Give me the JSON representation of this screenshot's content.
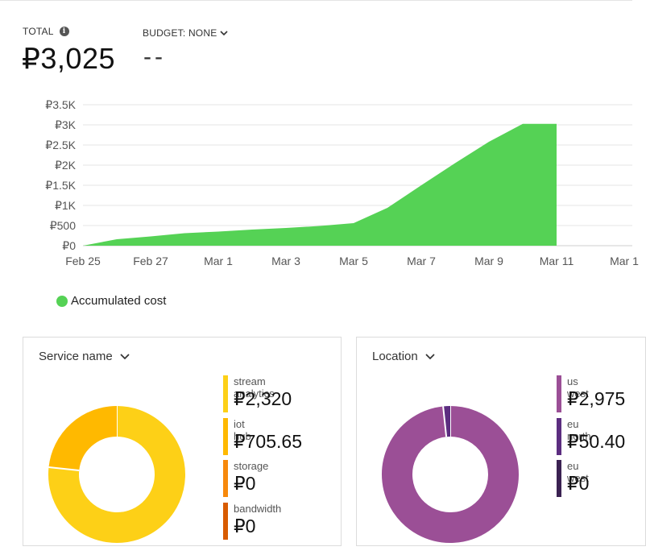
{
  "summary": {
    "total_label": "TOTAL",
    "total_value": "₽3,025",
    "budget_label": "BUDGET: NONE",
    "budget_value": "--"
  },
  "icons": {
    "info": "info-icon",
    "chevron": "chevron-down-icon"
  },
  "colors": {
    "accumulated": "#55d255",
    "stream_analytics": "#fdd017",
    "iot_hub": "#ffb900",
    "storage": "#f7890c",
    "bandwidth": "#d85b00",
    "us_west": "#9b4f96",
    "eu_north": "#5c2d80",
    "eu_west": "#3b2252"
  },
  "chart_data": {
    "type": "area",
    "x_tick_labels": [
      "Feb 25",
      "Feb 27",
      "Mar 1",
      "Mar 3",
      "Mar 5",
      "Mar 7",
      "Mar 9",
      "Mar 11",
      "Mar 1"
    ],
    "y_tick_labels": [
      "₽0",
      "₽500",
      "₽1K",
      "₽1.5K",
      "₽2K",
      "₽2.5K",
      "₽3K",
      "₽3.5K"
    ],
    "y_ticks": [
      0,
      500,
      1000,
      1500,
      2000,
      2500,
      3000,
      3500
    ],
    "ylim": [
      0,
      3500
    ],
    "x": [
      "Feb 25",
      "Feb 26",
      "Feb 27",
      "Feb 28",
      "Mar 1",
      "Mar 2",
      "Mar 3",
      "Mar 4",
      "Mar 5",
      "Mar 6",
      "Mar 7",
      "Mar 8",
      "Mar 9",
      "Mar 10",
      "Mar 11"
    ],
    "series": [
      {
        "name": "Accumulated cost",
        "values": [
          0,
          160,
          230,
          310,
          350,
          400,
          440,
          490,
          560,
          940,
          1500,
          2050,
          2580,
          3025,
          3025
        ]
      }
    ],
    "grid": true,
    "legend_position": "bottom-left"
  },
  "service_panel": {
    "title": "Service name",
    "items": [
      {
        "name": "stream analytics",
        "value": "₽2,320",
        "amount": 2320
      },
      {
        "name": "iot hub",
        "value": "₽705.65",
        "amount": 705.65
      },
      {
        "name": "storage",
        "value": "₽0",
        "amount": 0
      },
      {
        "name": "bandwidth",
        "value": "₽0",
        "amount": 0
      }
    ]
  },
  "location_panel": {
    "title": "Location",
    "items": [
      {
        "name": "us west",
        "value": "₽2,975",
        "amount": 2975
      },
      {
        "name": "eu north",
        "value": "₽50.40",
        "amount": 50.4
      },
      {
        "name": "eu west",
        "value": "₽0",
        "amount": 0
      }
    ]
  }
}
